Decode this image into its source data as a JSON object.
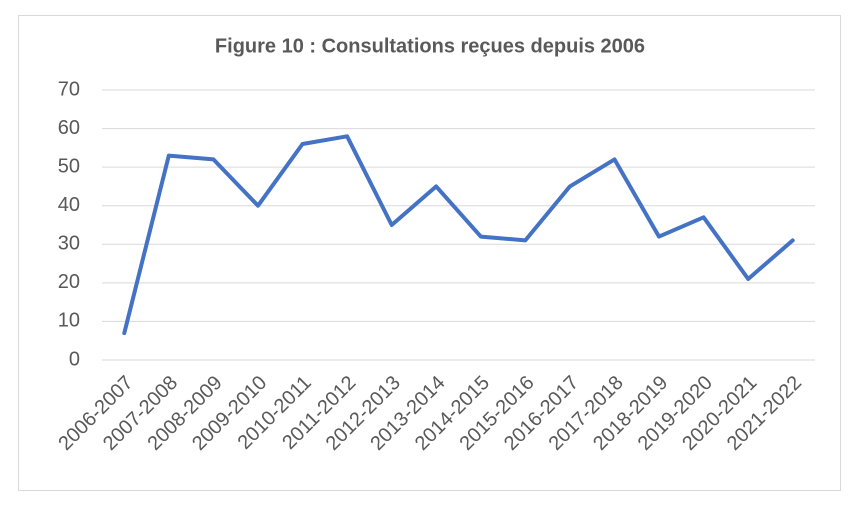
{
  "chart_data": {
    "type": "line",
    "title": "Figure 10 : Consultations reçues depuis 2006",
    "categories": [
      "2006-2007",
      "2007-2008",
      "2008-2009",
      "2009-2010",
      "2010-2011",
      "2011-2012",
      "2012-2013",
      "2013-2014",
      "2014-2015",
      "2015-2016",
      "2016-2017",
      "2017-2018",
      "2018-2019",
      "2019-2020",
      "2020-2021",
      "2021-2022"
    ],
    "values": [
      7,
      53,
      52,
      40,
      56,
      58,
      35,
      45,
      32,
      31,
      45,
      52,
      32,
      37,
      21,
      31
    ],
    "color": "#4472c4",
    "ylim": [
      0,
      70
    ],
    "yticks": [
      0,
      10,
      20,
      30,
      40,
      50,
      60,
      70
    ],
    "grid": true
  }
}
